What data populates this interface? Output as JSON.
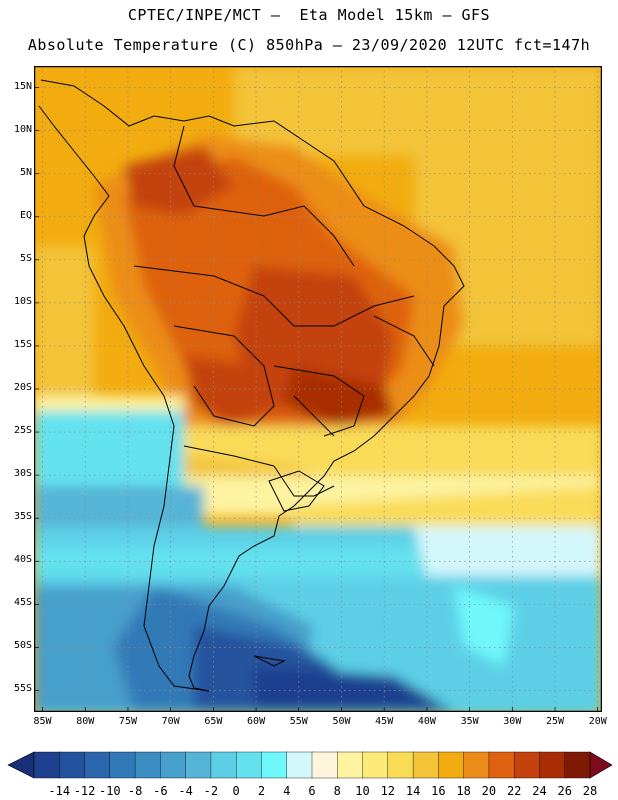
{
  "title": {
    "line1": "CPTEC/INPE/MCT –  Eta Model 15km – GFS",
    "line2": "Absolute Temperature (C) 850hPa – 23/09/2020 12UTC fct=147h"
  },
  "map": {
    "lat_labels": [
      "15N",
      "10N",
      "5N",
      "EQ",
      "5S",
      "10S",
      "15S",
      "20S",
      "25S",
      "30S",
      "35S",
      "40S",
      "45S",
      "50S",
      "55S"
    ],
    "lon_labels": [
      "85W",
      "80W",
      "75W",
      "70W",
      "65W",
      "60W",
      "55W",
      "50W",
      "45W",
      "40W",
      "35W",
      "30W",
      "25W",
      "20W"
    ],
    "lat_values": [
      15,
      10,
      5,
      0,
      -5,
      -10,
      -15,
      -20,
      -25,
      -30,
      -35,
      -40,
      -45,
      -50,
      -55
    ],
    "lon_values": [
      -85,
      -80,
      -75,
      -70,
      -65,
      -60,
      -55,
      -50,
      -45,
      -40,
      -35,
      -30,
      -25,
      -20
    ],
    "lon_range": [
      -86,
      -19.5
    ],
    "lat_range": [
      17.5,
      -57.5
    ],
    "grid": "dotted"
  },
  "colorbar": {
    "labels": [
      "-14",
      "-12",
      "-10",
      "-8",
      "-6",
      "-4",
      "-2",
      "0",
      "2",
      "4",
      "6",
      "8",
      "10",
      "12",
      "14",
      "16",
      "18",
      "20",
      "22",
      "24",
      "26",
      "28"
    ],
    "colors": [
      "#1f3f8f",
      "#25529e",
      "#2c66ac",
      "#3279b8",
      "#3c8dc2",
      "#479fcb",
      "#56b4d6",
      "#5ccfe6",
      "#63e1ef",
      "#6ff7fb",
      "#d4f7fb",
      "#fdf6dc",
      "#fdf3a0",
      "#fcea78",
      "#f9db58",
      "#f3c338",
      "#f2ac0f",
      "#ec8d19",
      "#de6210",
      "#c4420b",
      "#a82d06",
      "#7e1a04"
    ],
    "low_color": "#1a2f7a",
    "high_color": "#7e0b1d"
  }
}
